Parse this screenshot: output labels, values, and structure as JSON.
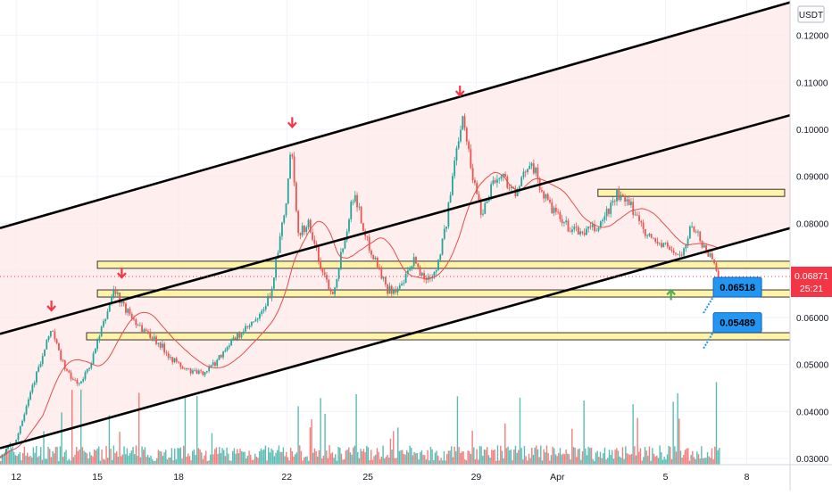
{
  "chart_data": {
    "type": "candlestick",
    "currency_badge": "USDT",
    "price_axis": {
      "range": [
        0.0287,
        0.1275
      ],
      "ticks": [
        "0.12000",
        "0.11000",
        "0.10000",
        "0.09000",
        "0.08000",
        "0.07000",
        "0.06000",
        "0.05000",
        "0.04000",
        "0.03000"
      ],
      "tick_values": [
        0.12,
        0.11,
        0.1,
        0.09,
        0.08,
        0.07,
        0.06,
        0.05,
        0.04,
        0.03
      ]
    },
    "time_axis": {
      "range_days": [
        11.4,
        40.6
      ],
      "ticks": [
        {
          "label": "12",
          "day": 12
        },
        {
          "label": "15",
          "day": 15
        },
        {
          "label": "18",
          "day": 18
        },
        {
          "label": "22",
          "day": 22
        },
        {
          "label": "25",
          "day": 25
        },
        {
          "label": "29",
          "day": 29
        },
        {
          "label": "Apr",
          "day": 32
        },
        {
          "label": "5",
          "day": 36
        },
        {
          "label": "8",
          "day": 39
        }
      ]
    },
    "last_price": {
      "value": "0.06871",
      "countdown": "25:21",
      "color": "#f23645"
    },
    "price_path": [
      [
        11.4,
        0.0305
      ],
      [
        12.0,
        0.034
      ],
      [
        12.5,
        0.044
      ],
      [
        13.0,
        0.052
      ],
      [
        13.3,
        0.058
      ],
      [
        13.6,
        0.052
      ],
      [
        14.0,
        0.047
      ],
      [
        14.4,
        0.046
      ],
      [
        14.8,
        0.051
      ],
      [
        15.3,
        0.06
      ],
      [
        15.6,
        0.066
      ],
      [
        16.0,
        0.062
      ],
      [
        16.6,
        0.058
      ],
      [
        17.2,
        0.055
      ],
      [
        17.8,
        0.051
      ],
      [
        18.2,
        0.049
      ],
      [
        18.8,
        0.048
      ],
      [
        19.3,
        0.05
      ],
      [
        19.8,
        0.054
      ],
      [
        20.4,
        0.057
      ],
      [
        21.0,
        0.06
      ],
      [
        21.4,
        0.065
      ],
      [
        21.7,
        0.075
      ],
      [
        22.0,
        0.085
      ],
      [
        22.15,
        0.097
      ],
      [
        22.4,
        0.078
      ],
      [
        22.8,
        0.08
      ],
      [
        23.3,
        0.07
      ],
      [
        23.7,
        0.065
      ],
      [
        24.1,
        0.076
      ],
      [
        24.5,
        0.087
      ],
      [
        24.9,
        0.077
      ],
      [
        25.3,
        0.072
      ],
      [
        25.7,
        0.066
      ],
      [
        26.2,
        0.066
      ],
      [
        26.7,
        0.072
      ],
      [
        27.1,
        0.068
      ],
      [
        27.5,
        0.07
      ],
      [
        27.9,
        0.08
      ],
      [
        28.2,
        0.093
      ],
      [
        28.5,
        0.104
      ],
      [
        28.8,
        0.092
      ],
      [
        29.2,
        0.082
      ],
      [
        29.6,
        0.089
      ],
      [
        30.0,
        0.09
      ],
      [
        30.5,
        0.086
      ],
      [
        31.0,
        0.094
      ],
      [
        31.4,
        0.087
      ],
      [
        31.8,
        0.083
      ],
      [
        32.2,
        0.08
      ],
      [
        32.8,
        0.078
      ],
      [
        33.5,
        0.079
      ],
      [
        34.2,
        0.086
      ],
      [
        34.8,
        0.083
      ],
      [
        35.4,
        0.077
      ],
      [
        36.0,
        0.075
      ],
      [
        36.6,
        0.073
      ],
      [
        37.0,
        0.08
      ],
      [
        37.4,
        0.075
      ],
      [
        37.8,
        0.072
      ],
      [
        38.0,
        0.0687
      ]
    ],
    "horizontal_zones": [
      {
        "name": "upper-resistance-zone",
        "price": 0.0865,
        "from_day": 33.5,
        "to_day": 40.4
      },
      {
        "name": "resistance-zone",
        "price": 0.0712,
        "from_day": 15.0,
        "to_day": 40.6
      },
      {
        "name": "support-zone-1",
        "price": 0.0651,
        "from_day": 15.0,
        "to_day": 40.6
      },
      {
        "name": "support-zone-2",
        "price": 0.056,
        "from_day": 14.6,
        "to_day": 40.6
      }
    ],
    "trend_lines": [
      {
        "name": "channel-top-line",
        "points": [
          [
            11.4,
            0.079
          ],
          [
            40.6,
            0.127
          ]
        ]
      },
      {
        "name": "channel-middle-line",
        "points": [
          [
            11.4,
            0.0565
          ],
          [
            40.6,
            0.103
          ]
        ]
      },
      {
        "name": "channel-lower-line",
        "points": [
          [
            11.4,
            0.0322
          ],
          [
            40.6,
            0.079
          ]
        ]
      }
    ],
    "price_labels": [
      {
        "text": "0.06518",
        "day": 37.6,
        "price": 0.067
      },
      {
        "text": "0.05489",
        "day": 37.6,
        "price": 0.0595
      }
    ],
    "markers": [
      {
        "type": "down-arrow",
        "day": 13.3,
        "price": 0.0615
      },
      {
        "type": "down-arrow",
        "day": 15.9,
        "price": 0.0685
      },
      {
        "type": "down-arrow",
        "day": 22.2,
        "price": 0.1005
      },
      {
        "type": "down-arrow",
        "day": 28.4,
        "price": 0.1072
      },
      {
        "type": "up-arrow",
        "day": 36.2,
        "price": 0.0637
      }
    ],
    "volume_bars_note": "",
    "colors": {
      "up": "#26a69a",
      "down": "#ef5350",
      "channel_fill": "#fde8e8",
      "zone_fill": "#fff3a8",
      "zone_stroke": "#333333",
      "label_bg": "#2196f3",
      "ma": "#e0504d"
    }
  }
}
